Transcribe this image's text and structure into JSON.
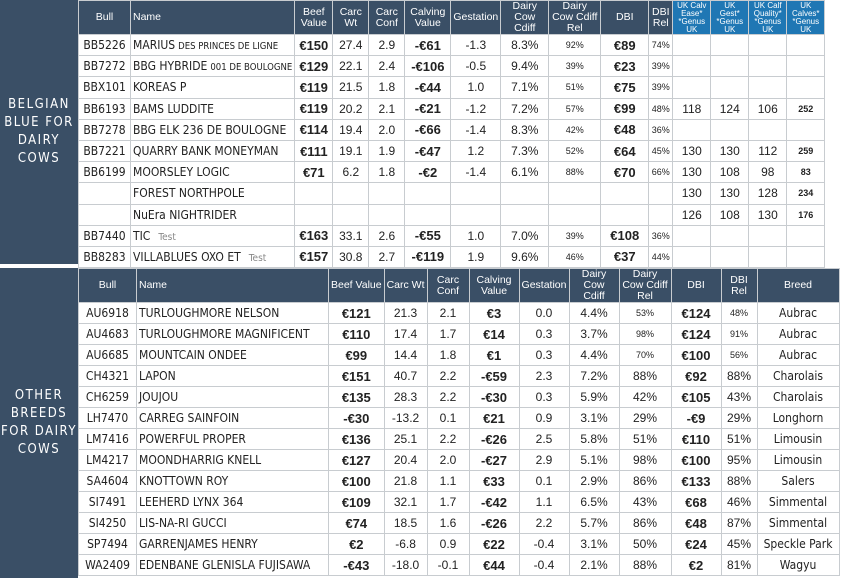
{
  "panel1": {
    "side_label": [
      "BELGIAN",
      "BLUE FOR",
      "DAIRY",
      "COWS"
    ],
    "headers": [
      "Bull",
      "Name",
      "Beef Value",
      "Carc Wt",
      "Carc Conf",
      "Calving Value",
      "Gestation",
      "Dairy Cow Cdiff",
      "Dairy Cow Cdiff Rel",
      "DBI",
      "DBI Rel",
      "UK Calv Ease* *Genus UK",
      "UK Gest* *Genus UK",
      "UK Calf Quality* *Genus UK",
      "UK Calves* *Genus UK"
    ],
    "rows": [
      {
        "bull": "BB5226",
        "name": "MARIUS",
        "name_small": "DES PRINCES DE LIGNE",
        "test": "",
        "beef": "€150",
        "carc_wt": "27.4",
        "carc_conf": "2.9",
        "calving": "-€61",
        "gest": "-1.3",
        "cdiff": "8.3%",
        "cdiff_rel": "92%",
        "dbi": "€89",
        "dbi_rel": "74%",
        "uk1": "",
        "uk2": "",
        "uk3": "",
        "uk4": ""
      },
      {
        "bull": "BB7272",
        "name": "BBG HYBRIDE",
        "name_small": "001 DE BOULOGNE",
        "test": "",
        "beef": "€129",
        "carc_wt": "22.1",
        "carc_conf": "2.4",
        "calving": "-€106",
        "gest": "-0.5",
        "cdiff": "9.4%",
        "cdiff_rel": "39%",
        "dbi": "€23",
        "dbi_rel": "39%",
        "uk1": "",
        "uk2": "",
        "uk3": "",
        "uk4": ""
      },
      {
        "bull": "BBX101",
        "name": "KOREAS P",
        "name_small": "",
        "test": "",
        "beef": "€119",
        "carc_wt": "21.5",
        "carc_conf": "1.8",
        "calving": "-€44",
        "gest": "1.0",
        "cdiff": "7.1%",
        "cdiff_rel": "51%",
        "dbi": "€75",
        "dbi_rel": "39%",
        "uk1": "",
        "uk2": "",
        "uk3": "",
        "uk4": ""
      },
      {
        "bull": "BB6193",
        "name": "BAMS LUDDITE",
        "name_small": "",
        "test": "",
        "beef": "€119",
        "carc_wt": "20.2",
        "carc_conf": "2.1",
        "calving": "-€21",
        "gest": "-1.2",
        "cdiff": "7.2%",
        "cdiff_rel": "57%",
        "dbi": "€99",
        "dbi_rel": "48%",
        "uk1": "118",
        "uk2": "124",
        "uk3": "106",
        "uk4": "252"
      },
      {
        "bull": "BB7278",
        "name": "BBG ELK 236 DE BOULOGNE",
        "name_small": "",
        "test": "",
        "beef": "€114",
        "carc_wt": "19.4",
        "carc_conf": "2.0",
        "calving": "-€66",
        "gest": "-1.4",
        "cdiff": "8.3%",
        "cdiff_rel": "42%",
        "dbi": "€48",
        "dbi_rel": "36%",
        "uk1": "",
        "uk2": "",
        "uk3": "",
        "uk4": ""
      },
      {
        "bull": "BB7221",
        "name": "QUARRY BANK MONEYMAN",
        "name_small": "",
        "test": "",
        "beef": "€111",
        "carc_wt": "19.1",
        "carc_conf": "1.9",
        "calving": "-€47",
        "gest": "1.2",
        "cdiff": "7.3%",
        "cdiff_rel": "52%",
        "dbi": "€64",
        "dbi_rel": "45%",
        "uk1": "130",
        "uk2": "130",
        "uk3": "112",
        "uk4": "259"
      },
      {
        "bull": "BB6199",
        "name": "MOORSLEY LOGIC",
        "name_small": "",
        "test": "",
        "beef": "€71",
        "carc_wt": "6.2",
        "carc_conf": "1.8",
        "calving": "-€2",
        "gest": "-1.4",
        "cdiff": "6.1%",
        "cdiff_rel": "88%",
        "dbi": "€70",
        "dbi_rel": "66%",
        "uk1": "130",
        "uk2": "108",
        "uk3": "98",
        "uk4": "83"
      },
      {
        "bull": "",
        "name": "FOREST NORTHPOLE",
        "name_small": "",
        "test": "",
        "beef": "",
        "carc_wt": "",
        "carc_conf": "",
        "calving": "",
        "gest": "",
        "cdiff": "",
        "cdiff_rel": "",
        "dbi": "",
        "dbi_rel": "",
        "uk1": "130",
        "uk2": "130",
        "uk3": "128",
        "uk4": "234"
      },
      {
        "bull": "",
        "name": "NuEra NIGHTRIDER",
        "name_small": "",
        "test": "",
        "beef": "",
        "carc_wt": "",
        "carc_conf": "",
        "calving": "",
        "gest": "",
        "cdiff": "",
        "cdiff_rel": "",
        "dbi": "",
        "dbi_rel": "",
        "uk1": "126",
        "uk2": "108",
        "uk3": "130",
        "uk4": "176"
      },
      {
        "bull": "BB7440",
        "name": "TIC",
        "name_small": "",
        "test": "Test",
        "beef": "€163",
        "carc_wt": "33.1",
        "carc_conf": "2.6",
        "calving": "-€55",
        "gest": "1.0",
        "cdiff": "7.0%",
        "cdiff_rel": "39%",
        "dbi": "€108",
        "dbi_rel": "36%",
        "uk1": "",
        "uk2": "",
        "uk3": "",
        "uk4": ""
      },
      {
        "bull": "BB8283",
        "name": "VILLABLUES OXO ET",
        "name_small": "",
        "test": "Test",
        "beef": "€157",
        "carc_wt": "30.8",
        "carc_conf": "2.7",
        "calving": "-€119",
        "gest": "1.9",
        "cdiff": "9.6%",
        "cdiff_rel": "46%",
        "dbi": "€37",
        "dbi_rel": "44%",
        "uk1": "",
        "uk2": "",
        "uk3": "",
        "uk4": ""
      }
    ]
  },
  "panel2": {
    "side_label": [
      "OTHER",
      "BREEDS",
      "FOR DAIRY",
      "COWS"
    ],
    "headers": [
      "Bull",
      "Name",
      "Beef Value",
      "Carc Wt",
      "Carc Conf",
      "Calving Value",
      "Gestation",
      "Dairy Cow Cdiff",
      "Dairy Cow Cdiff Rel",
      "DBI",
      "DBI Rel",
      "Breed"
    ],
    "rows": [
      {
        "bull": "AU6918",
        "name": "TURLOUGHMORE NELSON",
        "beef": "€121",
        "carc_wt": "21.3",
        "carc_conf": "2.1",
        "calving": "€3",
        "gest": "0.0",
        "cdiff": "4.4%",
        "cdiff_rel": "53%",
        "dbi": "€124",
        "dbi_rel": "48%",
        "breed": "Aubrac"
      },
      {
        "bull": "AU4683",
        "name": "TURLOUGHMORE MAGNIFICENT",
        "beef": "€110",
        "carc_wt": "17.4",
        "carc_conf": "1.7",
        "calving": "€14",
        "gest": "0.3",
        "cdiff": "3.7%",
        "cdiff_rel": "98%",
        "dbi": "€124",
        "dbi_rel": "91%",
        "breed": "Aubrac"
      },
      {
        "bull": "AU6685",
        "name": "MOUNTCAIN  ONDEE",
        "beef": "€99",
        "carc_wt": "14.4",
        "carc_conf": "1.8",
        "calving": "€1",
        "gest": "0.3",
        "cdiff": "4.4%",
        "cdiff_rel": "70%",
        "dbi": "€100",
        "dbi_rel": "56%",
        "breed": "Aubrac"
      },
      {
        "bull": "CH4321",
        "name": "LAPON",
        "beef": "€151",
        "carc_wt": "40.7",
        "carc_conf": "2.2",
        "calving": "-€59",
        "gest": "2.3",
        "cdiff": "7.2%",
        "cdiff_rel": "88%",
        "dbi": "€92",
        "dbi_rel": "88%",
        "breed": "Charolais"
      },
      {
        "bull": "CH6259",
        "name": "JOUJOU",
        "beef": "€135",
        "carc_wt": "28.3",
        "carc_conf": "2.2",
        "calving": "-€30",
        "gest": "0.3",
        "cdiff": "5.9%",
        "cdiff_rel": "42%",
        "dbi": "€105",
        "dbi_rel": "43%",
        "breed": "Charolais"
      },
      {
        "bull": "LH7470",
        "name": "CARREG SAINFOIN",
        "beef": "-€30",
        "carc_wt": "-13.2",
        "carc_conf": "0.1",
        "calving": "€21",
        "gest": "0.9",
        "cdiff": "3.1%",
        "cdiff_rel": "29%",
        "dbi": "-€9",
        "dbi_rel": "29%",
        "breed": "Longhorn"
      },
      {
        "bull": "LM7416",
        "name": "POWERFUL PROPER",
        "beef": "€136",
        "carc_wt": "25.1",
        "carc_conf": "2.2",
        "calving": "-€26",
        "gest": "2.5",
        "cdiff": "5.8%",
        "cdiff_rel": "51%",
        "dbi": "€110",
        "dbi_rel": "51%",
        "breed": "Limousin"
      },
      {
        "bull": "LM4217",
        "name": "MOONDHARRIG KNELL",
        "beef": "€127",
        "carc_wt": "20.4",
        "carc_conf": "2.0",
        "calving": "-€27",
        "gest": "2.9",
        "cdiff": "5.1%",
        "cdiff_rel": "98%",
        "dbi": "€100",
        "dbi_rel": "95%",
        "breed": "Limousin"
      },
      {
        "bull": "SA4604",
        "name": "KNOTTOWN ROY",
        "beef": "€100",
        "carc_wt": "21.8",
        "carc_conf": "1.1",
        "calving": "€33",
        "gest": "0.1",
        "cdiff": "2.9%",
        "cdiff_rel": "86%",
        "dbi": "€133",
        "dbi_rel": "88%",
        "breed": "Salers"
      },
      {
        "bull": "SI7491",
        "name": "LEEHERD LYNX 364",
        "beef": "€109",
        "carc_wt": "32.1",
        "carc_conf": "1.7",
        "calving": "-€42",
        "gest": "1.1",
        "cdiff": "6.5%",
        "cdiff_rel": "43%",
        "dbi": "€68",
        "dbi_rel": "46%",
        "breed": "Simmental"
      },
      {
        "bull": "SI4250",
        "name": "LIS-NA-RI GUCCI",
        "beef": "€74",
        "carc_wt": "18.5",
        "carc_conf": "1.6",
        "calving": "-€26",
        "gest": "2.2",
        "cdiff": "5.7%",
        "cdiff_rel": "86%",
        "dbi": "€48",
        "dbi_rel": "87%",
        "breed": "Simmental"
      },
      {
        "bull": "SP7494",
        "name": "GARRENJAMES HENRY",
        "beef": "€2",
        "carc_wt": "-6.8",
        "carc_conf": "0.9",
        "calving": "€22",
        "gest": "-0.4",
        "cdiff": "3.1%",
        "cdiff_rel": "50%",
        "dbi": "€24",
        "dbi_rel": "45%",
        "breed": "Speckle Park"
      },
      {
        "bull": "WA2409",
        "name": "EDENBANE GLENISLA FUJISAWA",
        "beef": "-€43",
        "carc_wt": "-18.0",
        "carc_conf": "-0.1",
        "calving": "€44",
        "gest": "-0.4",
        "cdiff": "2.1%",
        "cdiff_rel": "88%",
        "dbi": "€2",
        "dbi_rel": "81%",
        "breed": "Wagyu"
      }
    ]
  }
}
